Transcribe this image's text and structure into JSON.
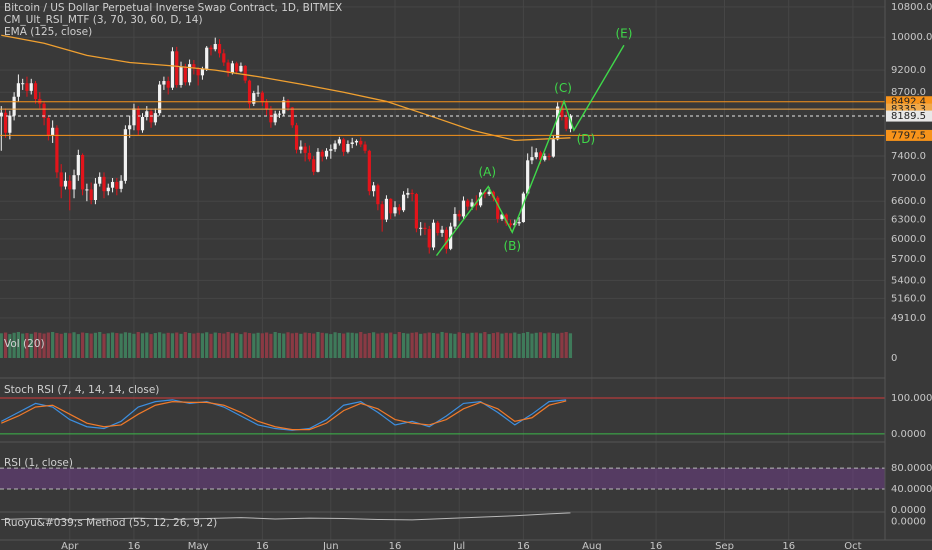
{
  "chart_data": {
    "type": "candlestick",
    "title": "Bitcoin / US Dollar Perpetual Inverse Swap Contract, 1D, BITMEX",
    "legend": [
      "CM_Ult_RSI_MTF (3, 70, 30, 60, D, 14)",
      "EMA (125, close)"
    ],
    "up_color": "#f2f2f2",
    "down_color": "#e3141b",
    "log": true,
    "grid": true,
    "xlim": [
      -0.3,
      206.5
    ],
    "xticks": [
      {
        "value": 16,
        "label": "Apr"
      },
      {
        "value": 31,
        "label": "16"
      },
      {
        "value": 46,
        "label": "May"
      },
      {
        "value": 61,
        "label": "16"
      },
      {
        "value": 77,
        "label": "Jun"
      },
      {
        "value": 92,
        "label": "16"
      },
      {
        "value": 107,
        "label": "Jul"
      },
      {
        "value": 122,
        "label": "16"
      },
      {
        "value": 138,
        "label": "Aug"
      },
      {
        "value": 153,
        "label": "16"
      },
      {
        "value": 169,
        "label": "Sep"
      },
      {
        "value": 184,
        "label": "16"
      },
      {
        "value": 199,
        "label": "Oct"
      }
    ],
    "ylim": [
      4762,
      10990
    ],
    "yticks": [
      {
        "value": 10800,
        "label": "10800.0"
      },
      {
        "value": 10000,
        "label": "10000.0"
      },
      {
        "value": 9200,
        "label": "9200.0"
      },
      {
        "value": 8700,
        "label": "8700.0"
      },
      {
        "value": 7400,
        "label": "7400.0"
      },
      {
        "value": 7000,
        "label": "7000.0"
      },
      {
        "value": 6600,
        "label": "6600.0"
      },
      {
        "value": 6300,
        "label": "6300.0"
      },
      {
        "value": 6000,
        "label": "6000.0"
      },
      {
        "value": 5700,
        "label": "5700.0"
      },
      {
        "value": 5400,
        "label": "5400.0"
      },
      {
        "value": 5160,
        "label": "5160.0"
      },
      {
        "value": 4910,
        "label": "4910.0"
      }
    ],
    "open": [
      8200,
      8260,
      7850,
      8200,
      8600,
      8900,
      8900,
      8730,
      8900,
      8550,
      8450,
      8150,
      7800,
      7950,
      7100,
      6850,
      6950,
      6800,
      7050,
      7420,
      6800,
      6800,
      6620,
      6900,
      7020,
      6770,
      6830,
      6930,
      6810,
      6950,
      7920,
      8000,
      8350,
      7900,
      8170,
      8290,
      8060,
      8250,
      8870,
      8950,
      8800,
      9650,
      8860,
      9280,
      8920,
      9340,
      9240,
      9080,
      9230,
      9740,
      9700,
      9830,
      9600,
      9380,
      9140,
      9360,
      9170,
      9300,
      8960,
      8450,
      8680,
      8690,
      8480,
      8340,
      8060,
      8240,
      8240,
      8520,
      8370,
      8000,
      7520,
      7580,
      7460,
      7340,
      7110,
      7480,
      7390,
      7500,
      7530,
      7640,
      7720,
      7480,
      7630,
      7660,
      7690,
      7620,
      7500,
      6770,
      6870,
      6550,
      6300,
      6640,
      6400,
      6500,
      6450,
      6710,
      6740,
      6720,
      6160,
      6170,
      6150,
      5870,
      6250,
      6090,
      6140,
      5850,
      6190,
      6390,
      6350,
      6610,
      6510,
      6580,
      6530,
      6750,
      6720,
      6760,
      6660,
      6310,
      6380,
      6240,
      6210,
      6240,
      6260,
      6730,
      7320,
      7380,
      7470,
      7330,
      7400,
      7390,
      7720,
      8390,
      8170,
      7930
    ],
    "high": [
      8400,
      8350,
      8300,
      8700,
      9100,
      9000,
      9050,
      9000,
      8950,
      8700,
      8500,
      8200,
      8100,
      8000,
      7250,
      7100,
      7050,
      7150,
      7520,
      7450,
      6900,
      6920,
      7000,
      7100,
      7100,
      6900,
      7000,
      7000,
      7050,
      8000,
      8200,
      8450,
      8400,
      8250,
      8400,
      8350,
      8350,
      8950,
      9050,
      9050,
      9750,
      9760,
      9400,
      9350,
      9450,
      9440,
      9270,
      9280,
      9780,
      9800,
      9990,
      9950,
      9700,
      9450,
      9420,
      9400,
      9380,
      9320,
      8980,
      8730,
      8850,
      8730,
      8550,
      8400,
      8300,
      8300,
      8600,
      8550,
      8380,
      8050,
      7700,
      7650,
      7600,
      7400,
      7550,
      7520,
      7550,
      7620,
      7700,
      7770,
      7750,
      7700,
      7750,
      7720,
      7760,
      7680,
      7520,
      6930,
      6900,
      6600,
      6700,
      6650,
      6600,
      6550,
      6770,
      6820,
      6800,
      6740,
      6260,
      6250,
      6200,
      6300,
      6280,
      6200,
      6180,
      6250,
      6500,
      6450,
      6680,
      6640,
      6640,
      6700,
      6800,
      6780,
      6840,
      6780,
      6690,
      6400,
      6400,
      6300,
      6300,
      6340,
      6760,
      7450,
      7580,
      7550,
      7500,
      7450,
      7450,
      7800,
      8480,
      8480,
      8280,
      8230
    ],
    "low": [
      7500,
      7750,
      7720,
      8100,
      8500,
      8750,
      8600,
      8650,
      8450,
      8350,
      8000,
      7700,
      7650,
      7000,
      6650,
      6800,
      6450,
      6650,
      6950,
      6700,
      6600,
      6550,
      6550,
      6850,
      6650,
      6700,
      6750,
      6700,
      6750,
      6900,
      7750,
      7900,
      7800,
      7850,
      8100,
      7950,
      8000,
      8200,
      8750,
      8650,
      8750,
      8800,
      8800,
      8850,
      8850,
      9100,
      8850,
      8980,
      9180,
      9550,
      9650,
      9500,
      9300,
      9050,
      9100,
      9100,
      9150,
      8900,
      8350,
      8400,
      8600,
      8400,
      8200,
      7950,
      8000,
      8150,
      8200,
      8300,
      7950,
      7450,
      7450,
      7300,
      7300,
      7050,
      7100,
      7300,
      7340,
      7350,
      7480,
      7600,
      7400,
      7450,
      7550,
      7600,
      7570,
      7450,
      6700,
      6680,
      6450,
      6110,
      6260,
      6310,
      6350,
      6380,
      6420,
      6650,
      6600,
      6100,
      6050,
      6060,
      5780,
      5830,
      6050,
      6030,
      5780,
      5830,
      6150,
      6280,
      6300,
      6450,
      6460,
      6450,
      6500,
      6650,
      6690,
      6600,
      6250,
      6280,
      6200,
      6120,
      6180,
      6200,
      6250,
      6700,
      7250,
      7340,
      7250,
      7300,
      7320,
      7370,
      7700,
      8100,
      7880,
      7860
    ],
    "close": [
      8260,
      7850,
      8200,
      8600,
      8900,
      8900,
      8730,
      8900,
      8550,
      8450,
      8150,
      7800,
      7950,
      7100,
      6850,
      6950,
      6800,
      7050,
      7420,
      6800,
      6800,
      6620,
      6900,
      7020,
      6770,
      6830,
      6930,
      6810,
      6950,
      7920,
      8000,
      8350,
      7900,
      8170,
      8290,
      8060,
      8250,
      8870,
      8950,
      8800,
      9650,
      8860,
      9280,
      8920,
      9340,
      9240,
      9080,
      9230,
      9740,
      9700,
      9830,
      9600,
      9380,
      9140,
      9360,
      9170,
      9300,
      8960,
      8450,
      8680,
      8690,
      8480,
      8340,
      8060,
      8240,
      8240,
      8520,
      8370,
      8000,
      7520,
      7580,
      7460,
      7340,
      7110,
      7480,
      7390,
      7500,
      7530,
      7640,
      7720,
      7480,
      7630,
      7660,
      7690,
      7620,
      7500,
      6770,
      6870,
      6550,
      6300,
      6640,
      6400,
      6500,
      6450,
      6710,
      6740,
      6720,
      6160,
      6170,
      6150,
      5870,
      6250,
      6090,
      6140,
      5850,
      6190,
      6390,
      6350,
      6610,
      6510,
      6580,
      6530,
      6750,
      6720,
      6760,
      6660,
      6310,
      6380,
      6240,
      6210,
      6240,
      6260,
      6730,
      7320,
      7380,
      7470,
      7330,
      7400,
      7390,
      7720,
      8390,
      8170,
      7930,
      8189.5
    ],
    "ema": {
      "color": "#f0a030",
      "x": [
        0,
        10,
        20,
        30,
        40,
        50,
        60,
        70,
        80,
        90,
        100,
        110,
        120,
        133
      ],
      "values": [
        10050,
        9850,
        9550,
        9380,
        9300,
        9200,
        9050,
        8880,
        8700,
        8500,
        8200,
        7900,
        7700,
        7750
      ]
    },
    "price_lines": [
      {
        "value": 8492.4,
        "color": "#f7931a"
      },
      {
        "value": 8335.3,
        "color": "#f0a94a"
      },
      {
        "value": 8189.5,
        "color": "#e8e8e8",
        "dashed": true
      },
      {
        "value": 7797.5,
        "color": "#f7931a"
      }
    ],
    "wave": {
      "color": "#3fd84a",
      "labels": [
        null,
        "(A)",
        "(B)",
        "(C)",
        "(D)",
        "(E)"
      ],
      "x": [
        101.7,
        113.8,
        119.4,
        131.5,
        133.8,
        145.5
      ],
      "y": [
        5750,
        6850,
        6100,
        8500,
        7900,
        9800
      ]
    },
    "volume": {
      "title": "Vol (20)",
      "ylim": [
        0,
        100
      ],
      "yticks": [
        0
      ],
      "values": [
        95,
        98,
        92,
        97,
        100,
        94,
        96,
        93,
        99,
        97,
        94,
        98,
        100,
        96,
        93,
        97,
        95,
        99,
        92,
        98,
        96,
        94,
        97,
        100,
        93,
        95,
        98,
        96,
        94,
        99,
        97,
        93,
        100,
        95,
        98,
        92,
        96,
        99,
        94,
        97,
        95,
        98,
        93,
        100,
        96,
        94,
        97,
        95,
        99,
        93,
        98,
        96,
        94,
        100,
        95,
        97,
        92,
        99,
        96,
        94,
        97,
        95,
        98,
        93,
        100,
        96,
        94,
        99,
        95,
        97,
        93,
        98,
        96,
        94,
        100,
        97,
        95,
        92,
        99,
        96,
        94,
        98,
        97,
        95,
        100,
        93,
        96,
        99,
        94,
        97,
        95,
        98,
        92,
        100,
        96,
        94,
        97,
        99,
        93,
        95,
        98,
        96,
        94,
        100,
        97,
        95,
        93,
        99,
        96,
        94,
        97,
        98,
        95,
        100,
        92,
        96,
        99,
        94,
        97,
        95,
        98,
        93,
        96,
        100,
        94,
        97,
        99,
        95,
        98,
        96,
        94,
        97,
        100,
        95
      ]
    },
    "stoch": {
      "title": "Stoch RSI (7, 4, 14, 14, close)",
      "ylim": [
        -17,
        142
      ],
      "yticks": [
        {
          "value": 100,
          "label": "100.0000"
        },
        {
          "value": 0,
          "label": "0.0000"
        }
      ],
      "tick_colors": [
        "#d23a3a",
        "#3cb84a"
      ],
      "x": [
        0,
        4,
        8,
        12,
        16,
        20,
        24,
        28,
        32,
        36,
        40,
        44,
        48,
        52,
        56,
        60,
        64,
        68,
        72,
        76,
        80,
        84,
        88,
        92,
        96,
        100,
        104,
        108,
        112,
        116,
        120,
        124,
        128,
        132
      ],
      "series": [
        {
          "color": "#3d8fe0",
          "values": [
            35,
            60,
            85,
            75,
            40,
            20,
            15,
            35,
            75,
            90,
            95,
            85,
            90,
            75,
            50,
            25,
            15,
            10,
            15,
            40,
            80,
            90,
            60,
            25,
            35,
            20,
            50,
            85,
            90,
            60,
            25,
            55,
            90,
            95
          ]
        },
        {
          "color": "#f07a2a",
          "values": [
            30,
            50,
            75,
            80,
            55,
            30,
            20,
            25,
            55,
            80,
            90,
            88,
            88,
            80,
            60,
            35,
            20,
            12,
            12,
            30,
            65,
            85,
            70,
            40,
            30,
            25,
            40,
            70,
            88,
            70,
            35,
            45,
            80,
            92
          ]
        }
      ]
    },
    "rsi": {
      "title": "RSI (1, close)",
      "ylim": [
        -9.5,
        124
      ],
      "yticks": [
        {
          "value": 80,
          "label": "80.0000"
        },
        {
          "value": 40,
          "label": "40.0000"
        },
        {
          "value": 0,
          "label": "0.0000"
        }
      ],
      "band_color": "#8a3fb0"
    },
    "ruoyu": {
      "title": "Ruoyu&#039;s Method (55, 12, 26, 9, 2)",
      "ylim": [
        -0.04,
        0.02
      ],
      "yticks": [
        {
          "value": 0,
          "label": "0.0000"
        }
      ],
      "color": "#b8b8b8",
      "x": [
        0,
        8,
        16,
        24,
        32,
        40,
        48,
        56,
        64,
        72,
        80,
        88,
        96,
        104,
        112,
        120,
        128,
        133
      ],
      "values": [
        0.004,
        0.006,
        0.003,
        0.005,
        0.007,
        0.004,
        0.006,
        0.008,
        0.005,
        0.007,
        0.006,
        0.004,
        0.003,
        0.006,
        0.009,
        0.012,
        0.016,
        0.018
      ]
    }
  }
}
